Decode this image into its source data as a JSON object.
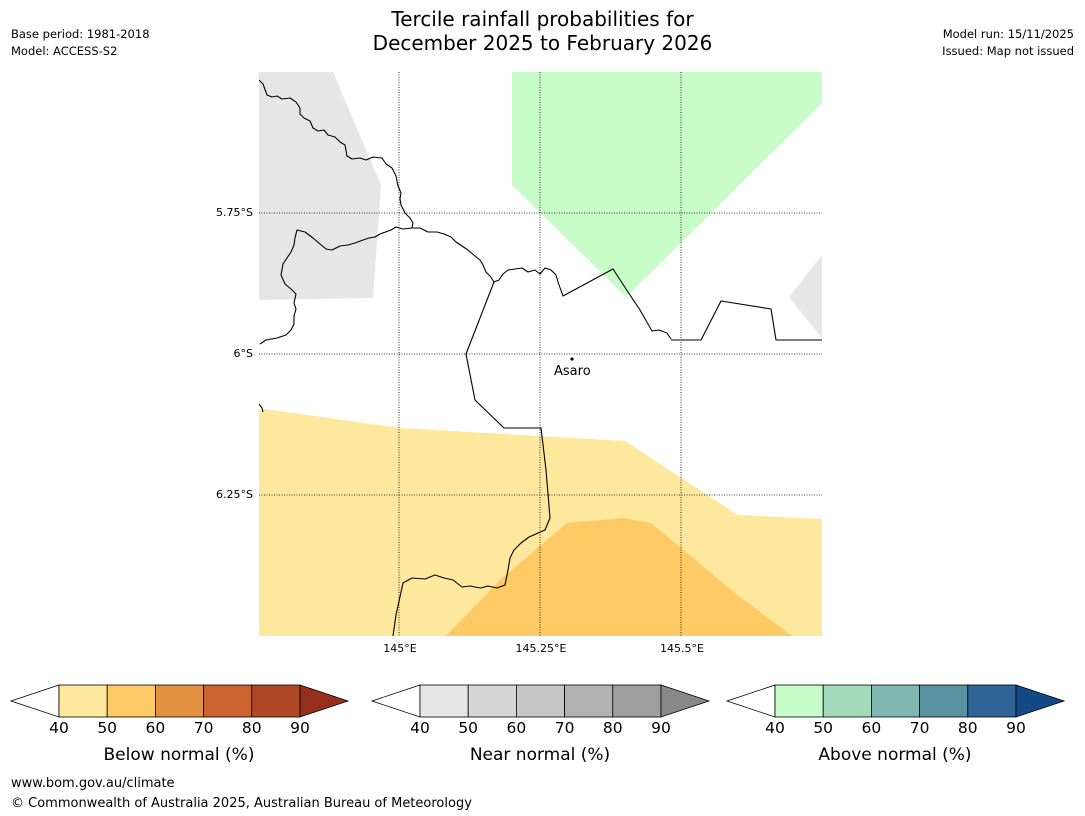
{
  "header": {
    "title_line1": "Tercile rainfall probabilities for",
    "title_line2": "December 2025 to February 2026",
    "base_period": "Base period: 1981-2018",
    "model": "Model: ACCESS-S2",
    "model_run": "Model run: 15/11/2025",
    "issued": "Issued: Map not issued"
  },
  "map": {
    "lat_labels": [
      "5.75°S",
      "6°S",
      "6.25°S"
    ],
    "lon_labels": [
      "145°E",
      "145.25°E",
      "145.5°E"
    ],
    "place": "Asaro",
    "colors": {
      "near_normal_shade": "#e6e6e6",
      "above_normal_shade": "#c8fcc8",
      "below_normal_light": "#fee89e",
      "below_normal_mid": "#fdca66",
      "border": "#000000"
    }
  },
  "legends": [
    {
      "title": "Below normal (%)",
      "ticks": [
        "40",
        "50",
        "60",
        "70",
        "80",
        "90"
      ],
      "colors": [
        "#ffffff",
        "#fee89e",
        "#fdca66",
        "#e2913f",
        "#cb6331",
        "#ae4826",
        "#962f1d"
      ]
    },
    {
      "title": "Near normal (%)",
      "ticks": [
        "40",
        "50",
        "60",
        "70",
        "80",
        "90"
      ],
      "colors": [
        "#ffffff",
        "#e6e6e6",
        "#d6d6d6",
        "#c6c6c6",
        "#b2b2b2",
        "#9f9f9f",
        "#888888"
      ]
    },
    {
      "title": "Above normal (%)",
      "ticks": [
        "40",
        "50",
        "60",
        "70",
        "80",
        "90"
      ],
      "colors": [
        "#ffffff",
        "#c8fcc8",
        "#a4d9bb",
        "#80b8b1",
        "#5993a0",
        "#2e6496",
        "#134a86"
      ]
    }
  ],
  "footer": {
    "website": "www.bom.gov.au/climate",
    "copyright": "© Commonwealth of Australia 2025, Australian Bureau of Meteorology"
  }
}
